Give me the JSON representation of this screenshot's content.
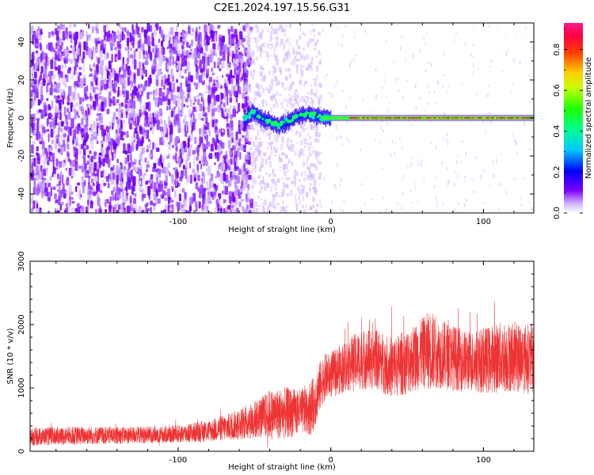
{
  "title": "C2E1.2024.197.15.56.G31",
  "chart_data": [
    {
      "type": "heatmap",
      "xlabel": "Height of straight line (km)",
      "ylabel": "Frequency (Hz)",
      "xlim": [
        -197,
        133
      ],
      "ylim": [
        -50,
        50
      ],
      "xticks": [
        -100,
        0,
        100
      ],
      "yticks": [
        -40,
        -20,
        0,
        20,
        40
      ],
      "colorbar": {
        "label": "Normalized spectral amplitude",
        "range": [
          0.0,
          0.93
        ],
        "ticks": [
          "0.0",
          "0.2",
          "0.4",
          "0.6",
          "0.8"
        ],
        "colormap": "hsv-like (purple low → red high)"
      },
      "noise_region_x": [
        -197,
        -57
      ],
      "signal_start_x": -57,
      "signal_ridge": [
        {
          "x": -57,
          "y": -1
        },
        {
          "x": -52,
          "y": 3
        },
        {
          "x": -46,
          "y": 0
        },
        {
          "x": -40,
          "y": -2
        },
        {
          "x": -34,
          "y": -4
        },
        {
          "x": -28,
          "y": -2
        },
        {
          "x": -22,
          "y": 1
        },
        {
          "x": -16,
          "y": 2
        },
        {
          "x": -10,
          "y": 1
        },
        {
          "x": -4,
          "y": 0
        },
        {
          "x": 5,
          "y": 0
        },
        {
          "x": 30,
          "y": 0
        },
        {
          "x": 60,
          "y": 0
        },
        {
          "x": 90,
          "y": 0
        },
        {
          "x": 133,
          "y": 0
        }
      ]
    },
    {
      "type": "line",
      "xlabel": "Height of straight line (km)",
      "ylabel": "SNR (10 * v/v)",
      "xlim": [
        -197,
        133
      ],
      "ylim": [
        0,
        3000
      ],
      "xticks": [
        -100,
        0,
        100
      ],
      "yticks": [
        0,
        1000,
        2000,
        3000
      ],
      "series_color": "#ee3333",
      "envelope": {
        "x": [
          -197,
          -180,
          -160,
          -140,
          -120,
          -100,
          -80,
          -60,
          -45,
          -40,
          -30,
          -20,
          -12,
          -5,
          0,
          10,
          20,
          30,
          40,
          50,
          60,
          65,
          70,
          80,
          90,
          100,
          110,
          120,
          133
        ],
        "mean": [
          230,
          240,
          250,
          250,
          260,
          270,
          320,
          420,
          540,
          580,
          600,
          620,
          700,
          1150,
          1200,
          1350,
          1450,
          1450,
          1320,
          1420,
          1550,
          1600,
          1550,
          1480,
          1420,
          1430,
          1480,
          1500,
          1450
        ],
        "spread": [
          180,
          180,
          180,
          170,
          170,
          180,
          220,
          300,
          420,
          500,
          520,
          450,
          550,
          480,
          450,
          520,
          600,
          600,
          600,
          650,
          700,
          800,
          700,
          650,
          600,
          650,
          700,
          700,
          700
        ]
      }
    }
  ]
}
